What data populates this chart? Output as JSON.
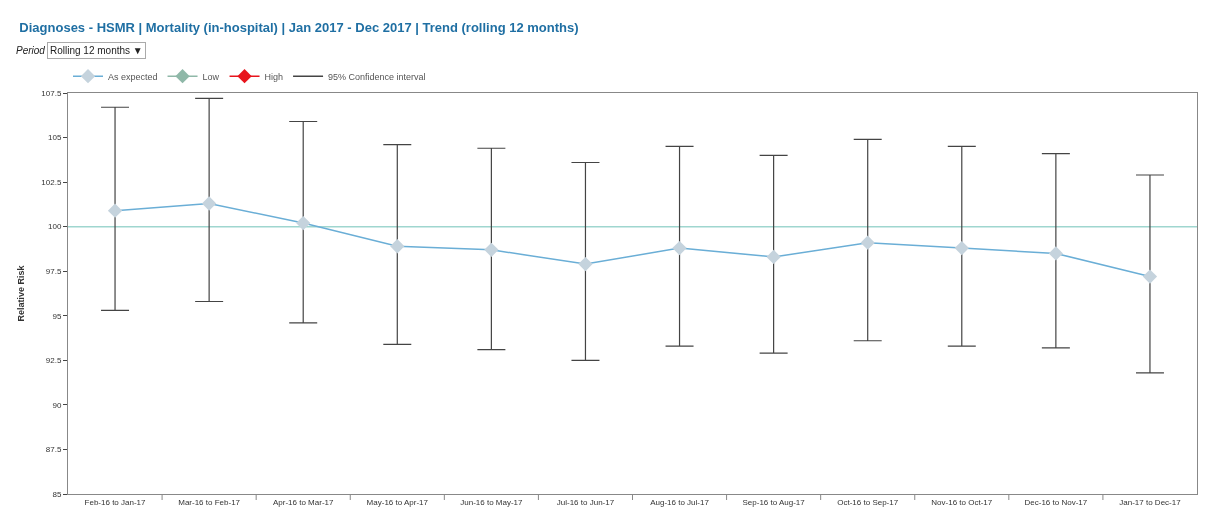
{
  "chart_data": {
    "type": "line",
    "title": "Diagnoses - HSMR | Mortality (in-hospital) | Jan 2017 - Dec 2017 | Trend (rolling 12 months)",
    "ylabel": "Relative Risk",
    "categories": [
      "Feb-16 to Jan-17",
      "Mar-16 to Feb-17",
      "Apr-16 to Mar-17",
      "May-16 to Apr-17",
      "Jun-16 to May-17",
      "Jul-16 to Jun-17",
      "Aug-16 to Jul-17",
      "Sep-16 to Aug-17",
      "Oct-16 to Sep-17",
      "Nov-16 to Oct-17",
      "Dec-16 to Nov-17",
      "Jan-17 to Dec-17"
    ],
    "series": [
      {
        "name": "As expected",
        "color": "#c5d3dd",
        "values": [
          100.9,
          101.3,
          100.2,
          98.9,
          98.7,
          97.9,
          98.8,
          98.3,
          99.1,
          98.8,
          98.5,
          97.2
        ],
        "errors": [
          [
            95.3,
            106.7
          ],
          [
            95.8,
            107.2
          ],
          [
            94.6,
            105.9
          ],
          [
            93.4,
            104.6
          ],
          [
            93.1,
            104.4
          ],
          [
            92.5,
            103.6
          ],
          [
            93.3,
            104.5
          ],
          [
            92.9,
            104.0
          ],
          [
            93.6,
            104.9
          ],
          [
            93.3,
            104.5
          ],
          [
            93.2,
            104.1
          ],
          [
            91.8,
            102.9
          ]
        ]
      },
      {
        "name": "Low",
        "color": "#8fb8a8",
        "values": [
          null,
          null,
          null,
          null,
          null,
          null,
          null,
          null,
          null,
          null,
          null,
          null
        ]
      },
      {
        "name": "High",
        "color": "#e8141c",
        "values": [
          null,
          null,
          null,
          null,
          null,
          null,
          null,
          null,
          null,
          null,
          null,
          null
        ]
      },
      {
        "name": "95% Confidence interval",
        "color": "#444444",
        "marker": "none",
        "values": [
          null,
          null,
          null,
          null,
          null,
          null,
          null,
          null,
          null,
          null,
          null,
          null
        ]
      }
    ],
    "ylim": [
      85,
      107.5
    ],
    "yticks": [
      85,
      87.5,
      90,
      92.5,
      95,
      97.5,
      100,
      102.5,
      105,
      107.5
    ],
    "ref_lines": [
      {
        "axis": "y",
        "value": 100,
        "color": "#9fd6cf"
      }
    ],
    "annotations": [
      "Period",
      "Rolling 12 months ▼"
    ],
    "marker": "diamond",
    "grid": false,
    "legend": "top left"
  }
}
